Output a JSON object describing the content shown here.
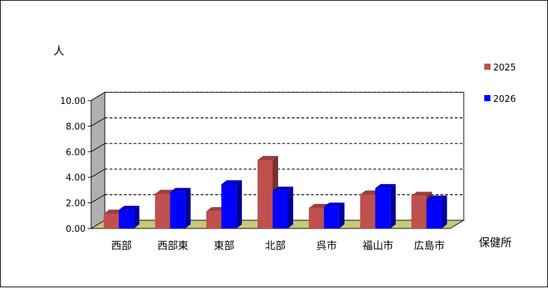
{
  "chart_data": {
    "type": "bar",
    "categories": [
      "西部",
      "西部東",
      "東部",
      "北部",
      "呉市",
      "福山市",
      "広島市"
    ],
    "series": [
      {
        "name": "2025",
        "values": [
          1.15,
          2.7,
          1.35,
          5.35,
          1.6,
          2.65,
          2.55
        ],
        "color": "#c0504d"
      },
      {
        "name": "2026",
        "values": [
          1.45,
          2.85,
          3.45,
          2.95,
          1.7,
          3.15,
          2.25
        ],
        "color": "#0000ff"
      }
    ],
    "ylabel": "人",
    "xlabel": "保健所",
    "ylim": [
      0,
      10
    ],
    "yticks": [
      "0.00",
      "2.00",
      "4.00",
      "6.00",
      "8.00",
      "10.00"
    ],
    "grid": true,
    "legend_position": "right",
    "floor_color": "#c8c878",
    "wall_color": "#b0b0b0"
  }
}
